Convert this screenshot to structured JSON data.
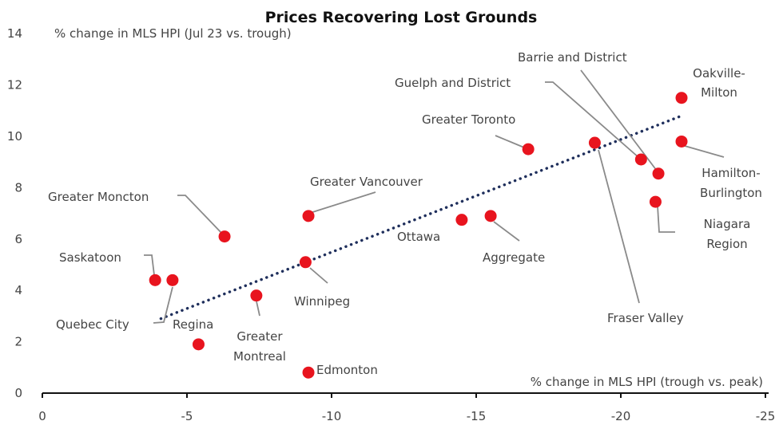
{
  "chart_data": {
    "type": "scatter",
    "title": "Prices Recovering Lost Grounds",
    "ylabel": "% change in MLS HPI (Jul 23 vs. trough)",
    "xlabel": "% change in MLS HPI (trough vs. peak)",
    "xlim": [
      0,
      -25
    ],
    "ylim": [
      0,
      14
    ],
    "xticks": [
      "0",
      "-5",
      "-10",
      "-15",
      "-20",
      "-25"
    ],
    "yticks": [
      "0",
      "2",
      "4",
      "6",
      "8",
      "10",
      "12",
      "14"
    ],
    "grid": false,
    "marker_color": "#e8141e",
    "trendline": {
      "style": "dotted",
      "color": "#1f2f5c",
      "x": [
        -4.1,
        -22.1
      ],
      "y": [
        2.9,
        10.8
      ]
    },
    "points": [
      {
        "name": "Saskatoon",
        "x": -3.9,
        "y": 4.4
      },
      {
        "name": "Quebec City",
        "x": -4.5,
        "y": 4.4
      },
      {
        "name": "Regina",
        "x": -5.4,
        "y": 1.9
      },
      {
        "name": "Greater Moncton",
        "x": -6.3,
        "y": 6.1
      },
      {
        "name": "Greater Montreal",
        "x": -7.4,
        "y": 3.8
      },
      {
        "name": "Winnipeg",
        "x": -9.1,
        "y": 5.1
      },
      {
        "name": "Greater Vancouver",
        "x": -9.2,
        "y": 6.9
      },
      {
        "name": "Edmonton",
        "x": -9.2,
        "y": 0.8
      },
      {
        "name": "Ottawa",
        "x": -14.5,
        "y": 6.75
      },
      {
        "name": "Aggregate",
        "x": -15.5,
        "y": 6.9
      },
      {
        "name": "Greater Toronto",
        "x": -16.8,
        "y": 9.5
      },
      {
        "name": "Fraser Valley",
        "x": -19.1,
        "y": 9.75
      },
      {
        "name": "Guelph and District",
        "x": -20.7,
        "y": 9.1
      },
      {
        "name": "Barrie and District",
        "x": -21.3,
        "y": 8.55
      },
      {
        "name": "Niagara Region",
        "x": -21.2,
        "y": 7.45
      },
      {
        "name": "Oakville-Milton",
        "x": -22.1,
        "y": 11.5
      },
      {
        "name": "Hamilton-Burlington",
        "x": -22.1,
        "y": 9.8
      }
    ]
  }
}
